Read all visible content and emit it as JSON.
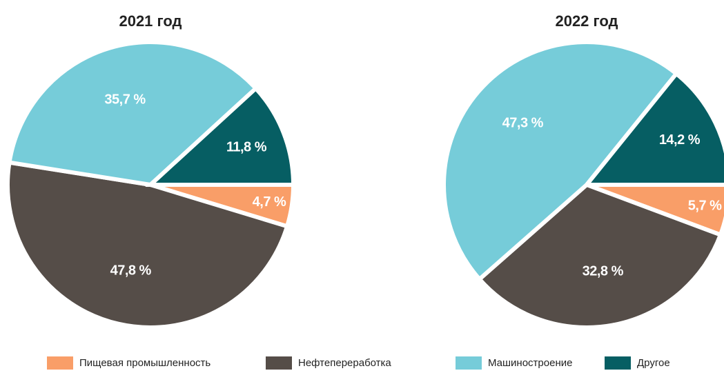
{
  "chart_data": [
    {
      "type": "pie",
      "title": "2021 год",
      "categories": [
        "Пищевая промышленность",
        "Нефтепереработка",
        "Машиностроение",
        "Другое"
      ],
      "values": [
        4.7,
        47.8,
        35.7,
        11.8
      ],
      "value_labels": [
        "4,7 %",
        "47,8 %",
        "35,7 %",
        "11,8 %"
      ],
      "colors": [
        "#f99e68",
        "#554d48",
        "#76ccd9",
        "#065e63"
      ]
    },
    {
      "type": "pie",
      "title": "2022 год",
      "categories": [
        "Пищевая промышленность",
        "Нефтепереработка",
        "Машиностроение",
        "Другое"
      ],
      "values": [
        5.7,
        32.8,
        47.3,
        14.2
      ],
      "value_labels": [
        "5,7 %",
        "32,8 %",
        "47,3 %",
        "14,2 %"
      ],
      "colors": [
        "#f99e68",
        "#554d48",
        "#76ccd9",
        "#065e63"
      ]
    }
  ]
}
